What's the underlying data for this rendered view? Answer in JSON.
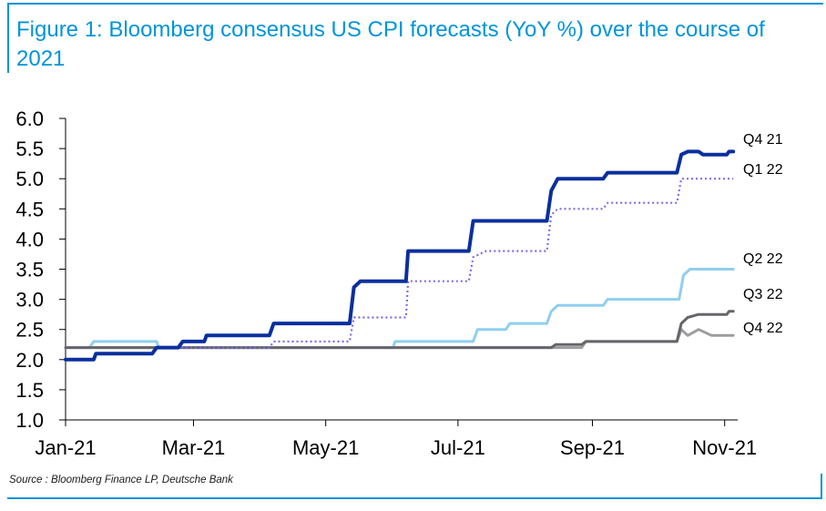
{
  "title": "Figure 1: Bloomberg consensus US CPI forecasts (YoY %) over the course of 2021",
  "source": "Source : Bloomberg Finance LP, Deutsche Bank",
  "chart_data": {
    "type": "line",
    "title": "Figure 1: Bloomberg consensus US CPI forecasts (YoY %) over the course of 2021",
    "xlabel": "",
    "ylabel": "",
    "ylim": [
      1.0,
      6.0
    ],
    "yticks": [
      "6.0",
      "5.5",
      "5.0",
      "4.5",
      "4.0",
      "3.5",
      "3.0",
      "2.5",
      "2.0",
      "1.5",
      "1.0"
    ],
    "xlim": [
      "2021-01-01",
      "2021-11-07"
    ],
    "xticks": [
      {
        "label": "Jan-21",
        "date": "2021-01-01"
      },
      {
        "label": "Mar-21",
        "date": "2021-03-01"
      },
      {
        "label": "May-21",
        "date": "2021-05-01"
      },
      {
        "label": "Jul-21",
        "date": "2021-07-01"
      },
      {
        "label": "Sep-21",
        "date": "2021-09-01"
      },
      {
        "label": "Nov-21",
        "date": "2021-11-01"
      }
    ],
    "grid": false,
    "legend": "labels at right end of each line",
    "series": [
      {
        "name": "Q2 22",
        "color": "#8fcfee",
        "style": "solid",
        "points": [
          [
            "2021-01-01",
            2.2
          ],
          [
            "2021-01-12",
            2.2
          ],
          [
            "2021-01-14",
            2.3
          ],
          [
            "2021-02-12",
            2.3
          ],
          [
            "2021-02-13",
            2.2
          ],
          [
            "2021-06-01",
            2.2
          ],
          [
            "2021-06-02",
            2.3
          ],
          [
            "2021-07-08",
            2.3
          ],
          [
            "2021-07-10",
            2.5
          ],
          [
            "2021-07-23",
            2.5
          ],
          [
            "2021-07-25",
            2.6
          ],
          [
            "2021-08-11",
            2.6
          ],
          [
            "2021-08-13",
            2.8
          ],
          [
            "2021-08-16",
            2.9
          ],
          [
            "2021-09-06",
            2.9
          ],
          [
            "2021-09-08",
            3.0
          ],
          [
            "2021-10-11",
            3.0
          ],
          [
            "2021-10-13",
            3.4
          ],
          [
            "2021-10-16",
            3.5
          ],
          [
            "2021-11-05",
            3.5
          ]
        ]
      },
      {
        "name": "Q4 22",
        "color": "#9d9da0",
        "style": "solid",
        "points": [
          [
            "2021-01-01",
            2.2
          ],
          [
            "2021-08-27",
            2.2
          ],
          [
            "2021-08-29",
            2.3
          ],
          [
            "2021-10-10",
            2.3
          ],
          [
            "2021-10-12",
            2.5
          ],
          [
            "2021-10-15",
            2.4
          ],
          [
            "2021-10-20",
            2.5
          ],
          [
            "2021-10-26",
            2.4
          ],
          [
            "2021-11-05",
            2.4
          ]
        ]
      },
      {
        "name": "Q3 22",
        "color": "#66666a",
        "style": "solid",
        "points": [
          [
            "2021-01-01",
            2.2
          ],
          [
            "2021-08-13",
            2.2
          ],
          [
            "2021-08-15",
            2.25
          ],
          [
            "2021-08-27",
            2.25
          ],
          [
            "2021-08-29",
            2.3
          ],
          [
            "2021-10-10",
            2.3
          ],
          [
            "2021-10-12",
            2.6
          ],
          [
            "2021-10-15",
            2.7
          ],
          [
            "2021-10-20",
            2.75
          ],
          [
            "2021-11-02",
            2.75
          ],
          [
            "2021-11-03",
            2.8
          ],
          [
            "2021-11-05",
            2.8
          ]
        ]
      },
      {
        "name": "Q1 22",
        "color": "#7b6ee0",
        "style": "dotted",
        "points": [
          [
            "2021-01-01",
            2.0
          ],
          [
            "2021-01-14",
            2.0
          ],
          [
            "2021-01-15",
            2.1
          ],
          [
            "2021-02-10",
            2.1
          ],
          [
            "2021-02-12",
            2.2
          ],
          [
            "2021-04-05",
            2.2
          ],
          [
            "2021-04-07",
            2.3
          ],
          [
            "2021-05-12",
            2.3
          ],
          [
            "2021-05-14",
            2.7
          ],
          [
            "2021-06-07",
            2.7
          ],
          [
            "2021-06-08",
            3.3
          ],
          [
            "2021-07-06",
            3.3
          ],
          [
            "2021-07-08",
            3.7
          ],
          [
            "2021-07-14",
            3.8
          ],
          [
            "2021-08-11",
            3.8
          ],
          [
            "2021-08-13",
            4.4
          ],
          [
            "2021-08-16",
            4.5
          ],
          [
            "2021-09-06",
            4.5
          ],
          [
            "2021-09-08",
            4.6
          ],
          [
            "2021-10-10",
            4.6
          ],
          [
            "2021-10-12",
            5.0
          ],
          [
            "2021-11-05",
            5.0
          ]
        ]
      },
      {
        "name": "Q4 21",
        "color": "#0a2f9e",
        "style": "solid",
        "points": [
          [
            "2021-01-01",
            2.0
          ],
          [
            "2021-01-14",
            2.0
          ],
          [
            "2021-01-15",
            2.1
          ],
          [
            "2021-02-10",
            2.1
          ],
          [
            "2021-02-12",
            2.2
          ],
          [
            "2021-02-22",
            2.2
          ],
          [
            "2021-02-24",
            2.3
          ],
          [
            "2021-03-06",
            2.3
          ],
          [
            "2021-03-07",
            2.4
          ],
          [
            "2021-04-05",
            2.4
          ],
          [
            "2021-04-07",
            2.6
          ],
          [
            "2021-05-12",
            2.6
          ],
          [
            "2021-05-14",
            3.2
          ],
          [
            "2021-05-17",
            3.3
          ],
          [
            "2021-06-07",
            3.3
          ],
          [
            "2021-06-08",
            3.8
          ],
          [
            "2021-07-06",
            3.8
          ],
          [
            "2021-07-08",
            4.3
          ],
          [
            "2021-08-11",
            4.3
          ],
          [
            "2021-08-13",
            4.8
          ],
          [
            "2021-08-16",
            5.0
          ],
          [
            "2021-09-06",
            5.0
          ],
          [
            "2021-09-08",
            5.1
          ],
          [
            "2021-10-10",
            5.1
          ],
          [
            "2021-10-12",
            5.4
          ],
          [
            "2021-10-15",
            5.45
          ],
          [
            "2021-10-20",
            5.45
          ],
          [
            "2021-10-22",
            5.4
          ],
          [
            "2021-11-02",
            5.4
          ],
          [
            "2021-11-03",
            5.45
          ],
          [
            "2021-11-05",
            5.45
          ]
        ]
      }
    ]
  }
}
